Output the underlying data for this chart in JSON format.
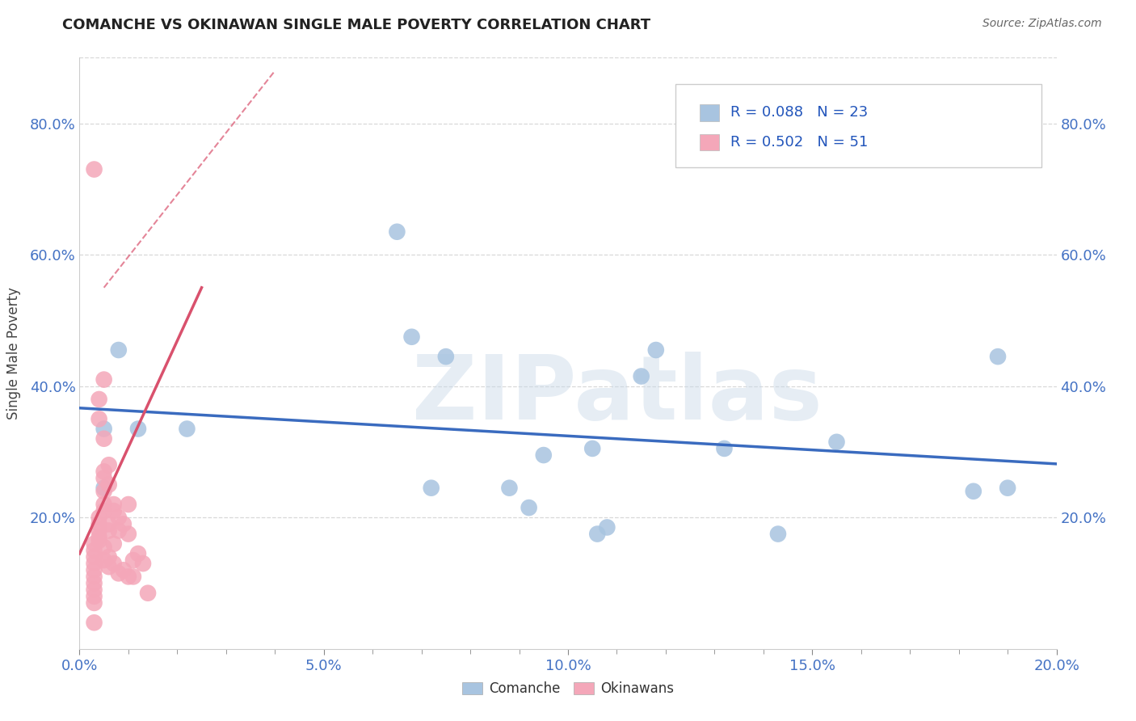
{
  "title": "COMANCHE VS OKINAWAN SINGLE MALE POVERTY CORRELATION CHART",
  "source": "Source: ZipAtlas.com",
  "ylabel": "Single Male Poverty",
  "xlim": [
    0.0,
    0.2
  ],
  "ylim": [
    0.0,
    0.9
  ],
  "xtick_labels": [
    "0.0%",
    "",
    "",
    "",
    "5.0%",
    "",
    "",
    "",
    "",
    "10.0%",
    "",
    "",
    "",
    "",
    "15.0%",
    "",
    "",
    "",
    "",
    "20.0%"
  ],
  "xtick_vals": [
    0.0,
    0.01,
    0.02,
    0.03,
    0.05,
    0.06,
    0.07,
    0.08,
    0.09,
    0.1,
    0.11,
    0.12,
    0.13,
    0.14,
    0.15,
    0.16,
    0.17,
    0.18,
    0.19,
    0.2
  ],
  "xtick_major_labels": [
    "0.0%",
    "5.0%",
    "10.0%",
    "15.0%",
    "20.0%"
  ],
  "xtick_major_vals": [
    0.0,
    0.05,
    0.1,
    0.15,
    0.2
  ],
  "ytick_labels": [
    "20.0%",
    "40.0%",
    "60.0%",
    "80.0%"
  ],
  "ytick_vals": [
    0.2,
    0.4,
    0.6,
    0.8
  ],
  "comanche_color": "#a8c4e0",
  "okinawan_color": "#f4a7b9",
  "comanche_line_color": "#3a6bbf",
  "okinawan_line_color": "#d9516d",
  "trend_line_dashed_color": "#d0a0a8",
  "watermark": "ZIPatlas",
  "legend_R_comanche": "R = 0.088",
  "legend_N_comanche": "N = 23",
  "legend_R_okinawan": "R = 0.502",
  "legend_N_okinawan": "N = 51",
  "comanche_x": [
    0.005,
    0.008,
    0.012,
    0.005,
    0.022,
    0.065,
    0.068,
    0.075,
    0.072,
    0.088,
    0.092,
    0.095,
    0.105,
    0.108,
    0.118,
    0.115,
    0.106,
    0.132,
    0.143,
    0.155,
    0.183,
    0.188,
    0.19
  ],
  "comanche_y": [
    0.335,
    0.455,
    0.335,
    0.245,
    0.335,
    0.635,
    0.475,
    0.445,
    0.245,
    0.245,
    0.215,
    0.295,
    0.305,
    0.185,
    0.455,
    0.415,
    0.175,
    0.305,
    0.175,
    0.315,
    0.24,
    0.445,
    0.245
  ],
  "okinawan_x": [
    0.003,
    0.003,
    0.003,
    0.003,
    0.003,
    0.003,
    0.003,
    0.003,
    0.003,
    0.003,
    0.003,
    0.003,
    0.004,
    0.004,
    0.004,
    0.004,
    0.004,
    0.004,
    0.004,
    0.005,
    0.005,
    0.005,
    0.005,
    0.005,
    0.005,
    0.005,
    0.005,
    0.005,
    0.006,
    0.006,
    0.006,
    0.006,
    0.006,
    0.006,
    0.007,
    0.007,
    0.007,
    0.007,
    0.008,
    0.008,
    0.008,
    0.009,
    0.009,
    0.01,
    0.01,
    0.01,
    0.011,
    0.011,
    0.012,
    0.013,
    0.014
  ],
  "okinawan_y": [
    0.73,
    0.16,
    0.15,
    0.14,
    0.13,
    0.12,
    0.11,
    0.1,
    0.09,
    0.08,
    0.07,
    0.04,
    0.38,
    0.35,
    0.2,
    0.19,
    0.18,
    0.17,
    0.165,
    0.41,
    0.32,
    0.27,
    0.26,
    0.24,
    0.22,
    0.21,
    0.155,
    0.135,
    0.28,
    0.25,
    0.19,
    0.18,
    0.14,
    0.125,
    0.22,
    0.21,
    0.16,
    0.13,
    0.2,
    0.18,
    0.115,
    0.19,
    0.12,
    0.22,
    0.175,
    0.11,
    0.135,
    0.11,
    0.145,
    0.13,
    0.085
  ],
  "background_color": "#ffffff",
  "grid_color": "#d8d8d8",
  "okinawan_trendline_x": [
    0.0,
    0.025
  ],
  "okinawan_trendline_y": [
    0.145,
    0.55
  ],
  "okinawan_dashline_x": [
    0.005,
    0.04
  ],
  "okinawan_dashline_y": [
    0.55,
    0.88
  ]
}
